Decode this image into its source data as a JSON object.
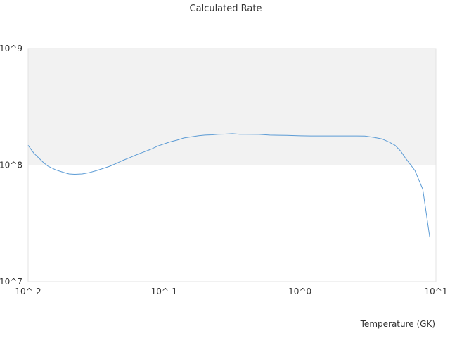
{
  "chart_data": {
    "type": "line",
    "title": "Calculated Rate",
    "xlabel": "Temperature (GK)",
    "ylabel": "",
    "x_scale": "log",
    "y_scale": "log",
    "xlim": [
      0.01,
      10
    ],
    "ylim": [
      10000000,
      1000000000
    ],
    "x_ticks": [
      "10^-2",
      "10^-1",
      "10^0",
      "10^1"
    ],
    "y_ticks": [
      "10^7",
      "10^8",
      "10^9"
    ],
    "shaded_band": [
      100000000,
      1000000000
    ],
    "grid": false,
    "series": [
      {
        "color": "#5b9bd5",
        "x": [
          0.01,
          0.011,
          0.012,
          0.013,
          0.014,
          0.016,
          0.018,
          0.02,
          0.022,
          0.025,
          0.028,
          0.032,
          0.036,
          0.04,
          0.045,
          0.05,
          0.056,
          0.063,
          0.07,
          0.08,
          0.09,
          0.1,
          0.11,
          0.125,
          0.14,
          0.16,
          0.18,
          0.2,
          0.225,
          0.25,
          0.28,
          0.32,
          0.36,
          0.4,
          0.5,
          0.6,
          0.7,
          0.8,
          1.0,
          1.2,
          1.5,
          2.0,
          2.5,
          3.0,
          3.5,
          4.0,
          4.5,
          5.0,
          5.5,
          6.0,
          7.0,
          8.0,
          9.0
        ],
        "y": [
          148000000,
          127000000,
          115000000,
          105000000,
          98000000,
          91000000,
          87000000,
          84000000,
          83500000,
          84000000,
          86000000,
          90000000,
          94000000,
          98000000,
          104000000,
          110000000,
          116000000,
          123000000,
          129000000,
          137000000,
          146000000,
          152000000,
          158000000,
          164000000,
          171000000,
          175000000,
          179000000,
          181000000,
          182000000,
          184000000,
          184500000,
          186000000,
          184000000,
          184000000,
          183500000,
          181000000,
          180500000,
          180000000,
          178500000,
          178000000,
          178000000,
          178000000,
          178000000,
          177500000,
          173000000,
          168000000,
          158000000,
          148000000,
          132000000,
          114000000,
          90000000,
          62000000,
          24000000
        ]
      }
    ]
  }
}
